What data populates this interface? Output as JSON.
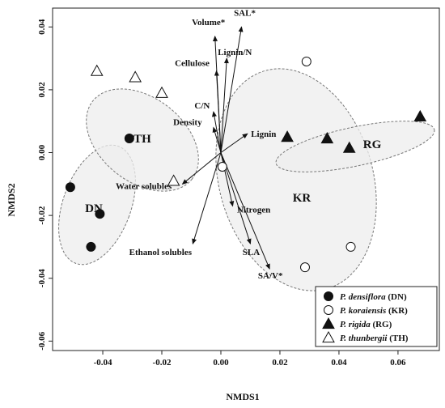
{
  "chart_data": {
    "type": "scatter",
    "xlabel": "NMDS1",
    "ylabel": "NMDS2",
    "xlim": [
      -0.057,
      0.074
    ],
    "ylim": [
      -0.063,
      0.046
    ],
    "xticks": [
      "-0.04",
      "-0.02",
      "0.00",
      "0.02",
      "0.04",
      "0.06"
    ],
    "yticks": [
      "-0.06",
      "-0.04",
      "-0.02",
      "0.00",
      "0.02",
      "0.04"
    ],
    "grid": false,
    "legend_position": "bottom-right",
    "series": [
      {
        "name": "P. densiflora",
        "code": "(DN)",
        "group_label": "DN",
        "marker": "circle-filled",
        "points": [
          [
            -0.051,
            -0.011
          ],
          [
            -0.041,
            -0.0195
          ],
          [
            -0.044,
            -0.03
          ],
          [
            -0.031,
            0.0045
          ]
        ]
      },
      {
        "name": "P. koraiensis",
        "code": "(KR)",
        "group_label": "KR",
        "marker": "circle-open",
        "points": [
          [
            0.029,
            0.029
          ],
          [
            0.044,
            -0.03
          ],
          [
            0.0285,
            -0.0365
          ],
          [
            0.0005,
            -0.0045
          ]
        ]
      },
      {
        "name": "P. rigida",
        "code": "(RG)",
        "group_label": "RG",
        "marker": "triangle-filled",
        "points": [
          [
            0.0225,
            0.005
          ],
          [
            0.036,
            0.0045
          ],
          [
            0.0435,
            0.0015
          ],
          [
            0.0675,
            0.0115
          ]
        ]
      },
      {
        "name": "P. thunbergii",
        "code": "(TH)",
        "group_label": "TH",
        "marker": "triangle-open",
        "points": [
          [
            -0.042,
            0.026
          ],
          [
            -0.029,
            0.024
          ],
          [
            -0.02,
            0.019
          ],
          [
            -0.016,
            -0.009
          ]
        ]
      }
    ],
    "vectors": [
      {
        "label": "Volume*",
        "x": -0.002,
        "y": 0.037
      },
      {
        "label": "SAL*",
        "x": 0.007,
        "y": 0.04
      },
      {
        "label": "Lignin/N",
        "x": 0.002,
        "y": 0.03
      },
      {
        "label": "Cellulose",
        "x": -0.0015,
        "y": 0.026
      },
      {
        "label": "C/N",
        "x": -0.0025,
        "y": 0.013
      },
      {
        "label": "Density",
        "x": -0.0025,
        "y": 0.008
      },
      {
        "label": "Lignin",
        "x": 0.009,
        "y": 0.006
      },
      {
        "label": "Water solubles",
        "x": -0.013,
        "y": -0.01
      },
      {
        "label": "Nitrogen",
        "x": 0.004,
        "y": -0.017
      },
      {
        "label": "Ethanol solubles",
        "x": -0.0095,
        "y": -0.029
      },
      {
        "label": "SLA",
        "x": 0.01,
        "y": -0.029
      },
      {
        "label": "SA/V*",
        "x": 0.0165,
        "y": -0.037
      }
    ]
  }
}
